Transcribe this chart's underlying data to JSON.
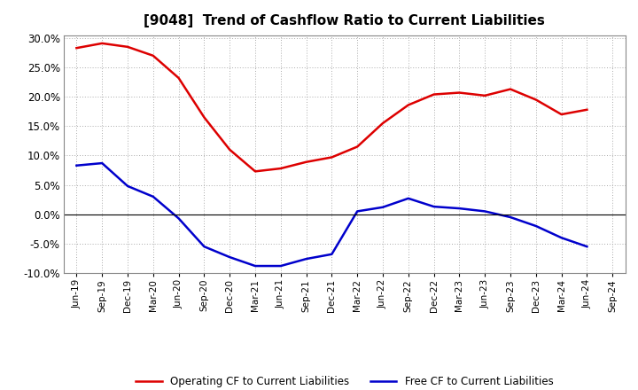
{
  "title": "[9048]  Trend of Cashflow Ratio to Current Liabilities",
  "x_labels": [
    "Jun-19",
    "Sep-19",
    "Dec-19",
    "Mar-20",
    "Jun-20",
    "Sep-20",
    "Dec-20",
    "Mar-21",
    "Jun-21",
    "Sep-21",
    "Dec-21",
    "Mar-22",
    "Jun-22",
    "Sep-22",
    "Dec-22",
    "Mar-23",
    "Jun-23",
    "Sep-23",
    "Dec-23",
    "Mar-24",
    "Jun-24",
    "Sep-24"
  ],
  "operating_cf": [
    0.283,
    0.291,
    0.285,
    0.27,
    0.232,
    0.165,
    0.11,
    0.073,
    0.078,
    0.089,
    0.097,
    0.115,
    0.155,
    0.186,
    0.204,
    0.207,
    0.202,
    0.213,
    0.195,
    0.17,
    0.178,
    null
  ],
  "free_cf": [
    0.083,
    0.087,
    0.048,
    0.03,
    -0.007,
    -0.055,
    -0.073,
    -0.088,
    -0.088,
    -0.076,
    -0.068,
    0.005,
    0.012,
    0.027,
    0.013,
    0.01,
    0.005,
    -0.005,
    -0.02,
    -0.04,
    -0.055,
    null
  ],
  "operating_color": "#dd0000",
  "free_color": "#0000cc",
  "ylim": [
    -0.1,
    0.305
  ],
  "yticks": [
    -0.1,
    -0.05,
    0.0,
    0.05,
    0.1,
    0.15,
    0.2,
    0.25,
    0.3
  ],
  "legend_labels": [
    "Operating CF to Current Liabilities",
    "Free CF to Current Liabilities"
  ],
  "background_color": "#ffffff",
  "plot_bg_color": "#ffffff",
  "grid_color": "#aaaaaa",
  "title_fontsize": 11,
  "linewidth": 1.8
}
